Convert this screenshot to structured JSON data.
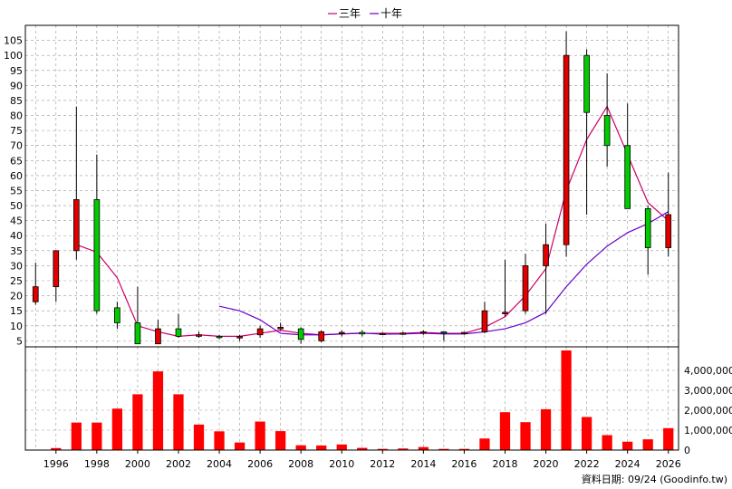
{
  "legend": [
    {
      "label": "三年",
      "color": "#cc0066"
    },
    {
      "label": "十年",
      "color": "#6600cc"
    }
  ],
  "footer": {
    "source": "資料日期: 09/24  (Goodinfo.tw)"
  },
  "colors": {
    "up": "#e00000",
    "down": "#00cc00",
    "volume": "#ff0000",
    "grid": "#999999"
  },
  "chart_data": {
    "type": "candlestick+bar",
    "price_axis": {
      "ylim": [
        3,
        110
      ],
      "ticks": [
        5,
        10,
        15,
        20,
        25,
        30,
        35,
        40,
        45,
        50,
        55,
        60,
        65,
        70,
        75,
        80,
        85,
        90,
        95,
        100,
        105
      ]
    },
    "volume_axis": {
      "ylim": [
        0,
        5000000
      ],
      "ticks": [
        0,
        1000000,
        2000000,
        3000000,
        4000000
      ],
      "tick_labels": [
        "0",
        "1,000,000",
        "2,000,000",
        "3,000,000",
        "4,000,000"
      ]
    },
    "x_ticks": [
      "1996",
      "1998",
      "2000",
      "2002",
      "2004",
      "2006",
      "2008",
      "2010",
      "2012",
      "2014",
      "2016",
      "2018",
      "2020",
      "2022",
      "2024",
      "2026"
    ],
    "candles": [
      {
        "year": 1995,
        "open": 18,
        "high": 31,
        "low": 17,
        "close": 23
      },
      {
        "year": 1996,
        "open": 23,
        "high": 35,
        "low": 18,
        "close": 35
      },
      {
        "year": 1997,
        "open": 35,
        "high": 83,
        "low": 32,
        "close": 52
      },
      {
        "year": 1998,
        "open": 52,
        "high": 67,
        "low": 14,
        "close": 15
      },
      {
        "year": 1999,
        "open": 16,
        "high": 18,
        "low": 9,
        "close": 11
      },
      {
        "year": 2000,
        "open": 11,
        "high": 23,
        "low": 4,
        "close": 4
      },
      {
        "year": 2001,
        "open": 4,
        "high": 12,
        "low": 4,
        "close": 9
      },
      {
        "year": 2002,
        "open": 9,
        "high": 14,
        "low": 6,
        "close": 6.5
      },
      {
        "year": 2003,
        "open": 6.5,
        "high": 8,
        "low": 6,
        "close": 7
      },
      {
        "year": 2004,
        "open": 6.5,
        "high": 7,
        "low": 5.5,
        "close": 6.3
      },
      {
        "year": 2005,
        "open": 6,
        "high": 7,
        "low": 5,
        "close": 6.4
      },
      {
        "year": 2006,
        "open": 7,
        "high": 10,
        "low": 6,
        "close": 9
      },
      {
        "year": 2007,
        "open": 9,
        "high": 11,
        "low": 8.5,
        "close": 9.5
      },
      {
        "year": 2008,
        "open": 9,
        "high": 9.5,
        "low": 4,
        "close": 5.5
      },
      {
        "year": 2009,
        "open": 5,
        "high": 8.5,
        "low": 4.5,
        "close": 8
      },
      {
        "year": 2010,
        "open": 7.5,
        "high": 8.5,
        "low": 6.5,
        "close": 7.8
      },
      {
        "year": 2011,
        "open": 7.8,
        "high": 8.5,
        "low": 6.5,
        "close": 7.3
      },
      {
        "year": 2012,
        "open": 7.3,
        "high": 7.8,
        "low": 7,
        "close": 7.5
      },
      {
        "year": 2013,
        "open": 7.5,
        "high": 8,
        "low": 7,
        "close": 7.6
      },
      {
        "year": 2014,
        "open": 7.6,
        "high": 8.5,
        "low": 7,
        "close": 8
      },
      {
        "year": 2015,
        "open": 8,
        "high": 8,
        "low": 5,
        "close": 7.6
      },
      {
        "year": 2016,
        "open": 7.6,
        "high": 8,
        "low": 7,
        "close": 7.8
      },
      {
        "year": 2017,
        "open": 8,
        "high": 18,
        "low": 7.5,
        "close": 15
      },
      {
        "year": 2018,
        "open": 14,
        "high": 32,
        "low": 13,
        "close": 14.5
      },
      {
        "year": 2019,
        "open": 15,
        "high": 34,
        "low": 14,
        "close": 30
      },
      {
        "year": 2020,
        "open": 30,
        "high": 44,
        "low": 14,
        "close": 37
      },
      {
        "year": 2021,
        "open": 37,
        "high": 108,
        "low": 33,
        "close": 100
      },
      {
        "year": 2022,
        "open": 100,
        "high": 102,
        "low": 47,
        "close": 81
      },
      {
        "year": 2023,
        "open": 80,
        "high": 94,
        "low": 63,
        "close": 70
      },
      {
        "year": 2024,
        "open": 70,
        "high": 84,
        "low": 49,
        "close": 49
      },
      {
        "year": 2025,
        "open": 49,
        "high": 50,
        "low": 27,
        "close": 36
      },
      {
        "year": 2026,
        "open": 36,
        "high": 61,
        "low": 33,
        "close": 47
      }
    ],
    "volume": [
      {
        "year": 1995,
        "value": 20000
      },
      {
        "year": 1996,
        "value": 100000
      },
      {
        "year": 1997,
        "value": 1380000
      },
      {
        "year": 1998,
        "value": 1380000
      },
      {
        "year": 1999,
        "value": 2080000
      },
      {
        "year": 2000,
        "value": 2800000
      },
      {
        "year": 2001,
        "value": 3950000
      },
      {
        "year": 2002,
        "value": 2800000
      },
      {
        "year": 2003,
        "value": 1280000
      },
      {
        "year": 2004,
        "value": 940000
      },
      {
        "year": 2005,
        "value": 380000
      },
      {
        "year": 2006,
        "value": 1430000
      },
      {
        "year": 2007,
        "value": 950000
      },
      {
        "year": 2008,
        "value": 240000
      },
      {
        "year": 2009,
        "value": 230000
      },
      {
        "year": 2010,
        "value": 280000
      },
      {
        "year": 2011,
        "value": 110000
      },
      {
        "year": 2012,
        "value": 60000
      },
      {
        "year": 2013,
        "value": 80000
      },
      {
        "year": 2014,
        "value": 150000
      },
      {
        "year": 2015,
        "value": 60000
      },
      {
        "year": 2016,
        "value": 60000
      },
      {
        "year": 2017,
        "value": 580000
      },
      {
        "year": 2018,
        "value": 1900000
      },
      {
        "year": 2019,
        "value": 1400000
      },
      {
        "year": 2020,
        "value": 2050000
      },
      {
        "year": 2021,
        "value": 5000000
      },
      {
        "year": 2022,
        "value": 1660000
      },
      {
        "year": 2023,
        "value": 750000
      },
      {
        "year": 2024,
        "value": 420000
      },
      {
        "year": 2025,
        "value": 540000
      },
      {
        "year": 2026,
        "value": 1100000
      }
    ],
    "series": [
      {
        "name": "三年",
        "color": "#cc0066",
        "points": [
          [
            1997,
            37
          ],
          [
            1998,
            34.5
          ],
          [
            1999,
            26
          ],
          [
            2000,
            10
          ],
          [
            2001,
            8
          ],
          [
            2002,
            6.5
          ],
          [
            2003,
            7
          ],
          [
            2004,
            6.5
          ],
          [
            2005,
            6.5
          ],
          [
            2006,
            7.5
          ],
          [
            2007,
            8.5
          ],
          [
            2008,
            7.5
          ],
          [
            2009,
            7
          ],
          [
            2010,
            7.3
          ],
          [
            2011,
            7.5
          ],
          [
            2012,
            7.5
          ],
          [
            2013,
            7.5
          ],
          [
            2014,
            7.8
          ],
          [
            2015,
            7.5
          ],
          [
            2016,
            7.5
          ],
          [
            2017,
            9.5
          ],
          [
            2018,
            13
          ],
          [
            2019,
            20
          ],
          [
            2020,
            29
          ],
          [
            2021,
            55
          ],
          [
            2022,
            72
          ],
          [
            2023,
            83
          ],
          [
            2024,
            67
          ],
          [
            2025,
            51
          ],
          [
            2026,
            45
          ]
        ]
      },
      {
        "name": "十年",
        "color": "#6600cc",
        "points": [
          [
            2004,
            16.5
          ],
          [
            2005,
            15
          ],
          [
            2006,
            12
          ],
          [
            2007,
            7.5
          ],
          [
            2008,
            7
          ],
          [
            2009,
            7
          ],
          [
            2010,
            7.3
          ],
          [
            2011,
            7.6
          ],
          [
            2012,
            7.2
          ],
          [
            2013,
            7.3
          ],
          [
            2014,
            7.5
          ],
          [
            2015,
            7.3
          ],
          [
            2016,
            7.3
          ],
          [
            2017,
            8
          ],
          [
            2018,
            9
          ],
          [
            2019,
            11
          ],
          [
            2020,
            14.5
          ],
          [
            2021,
            23
          ],
          [
            2022,
            30.5
          ],
          [
            2023,
            36.5
          ],
          [
            2024,
            41
          ],
          [
            2025,
            44
          ],
          [
            2026,
            48
          ]
        ]
      }
    ]
  }
}
